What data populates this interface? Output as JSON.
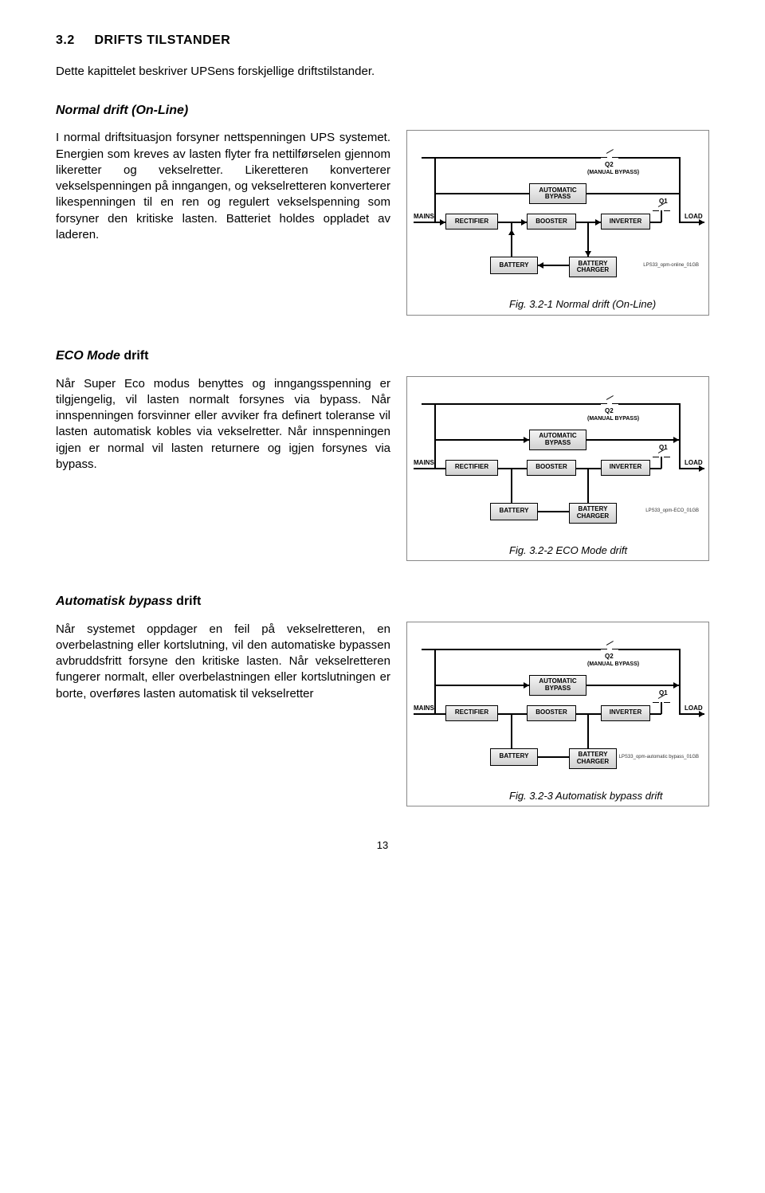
{
  "section": {
    "number": "3.2",
    "title": "DRIFTS TILSTANDER",
    "intro": "Dette kapittelet beskriver UPSens forskjellige driftstilstander."
  },
  "sections": [
    {
      "heading": "Normal drift (On-Line)",
      "body": "I normal driftsituasjon forsyner nettspenningen UPS systemet.\nEnergien som kreves av lasten flyter fra nettilførselen gjennom likeretter og vekselretter. Likeretteren konverterer vekselspenningen på inngangen, og vekselretteren konverterer likespenningen til en ren og regulert vekselspenning som forsyner den kritiske lasten. Batteriet holdes oppladet av laderen.",
      "caption": "Fig. 3.2-1 Normal drift (On-Line)",
      "footnote": "LPS33_opm-online_01GB"
    },
    {
      "heading": "ECO Mode drift",
      "heading_italic_part": "ECO Mode",
      "heading_rest": " drift",
      "body": "Når Super Eco modus benyttes og inngangsspenning er tilgjengelig, vil lasten normalt forsynes via bypass.\nNår innspenningen forsvinner eller avviker fra definert toleranse vil lasten automatisk kobles via vekselretter.\nNår innspenningen igjen er normal vil lasten returnere og igjen forsynes via bypass.",
      "caption": "Fig. 3.2-2 ECO Mode drift",
      "footnote": "LPS33_opm-ECO_01GB"
    },
    {
      "heading": "Automatisk bypass drift",
      "heading_italic_part": "Automatisk bypass",
      "heading_rest": " drift",
      "body": "Når systemet oppdager en feil på vekselretteren, en overbelastning eller kortslutning, vil den automatiske bypassen avbruddsfritt forsyne den kritiske lasten. Når vekselretteren fungerer normalt, eller overbelastningen eller kortslutningen er borte, overføres lasten automatisk til vekselretter",
      "caption": "Fig. 3.2-3 Automatisk bypass drift",
      "footnote": "LPS33_opm-automatic bypass_01GB"
    }
  ],
  "diagram_labels": {
    "mains": "MAINS",
    "load": "LOAD",
    "q1": "Q1",
    "q2": "Q2",
    "manual_bypass": "(MANUAL BYPASS)",
    "auto_bypass": "AUTOMATIC\nBYPASS",
    "rectifier": "RECTIFIER",
    "booster": "BOOSTER",
    "inverter": "INVERTER",
    "battery": "BATTERY",
    "charger": "BATTERY\nCHARGER"
  },
  "page_number": "13"
}
